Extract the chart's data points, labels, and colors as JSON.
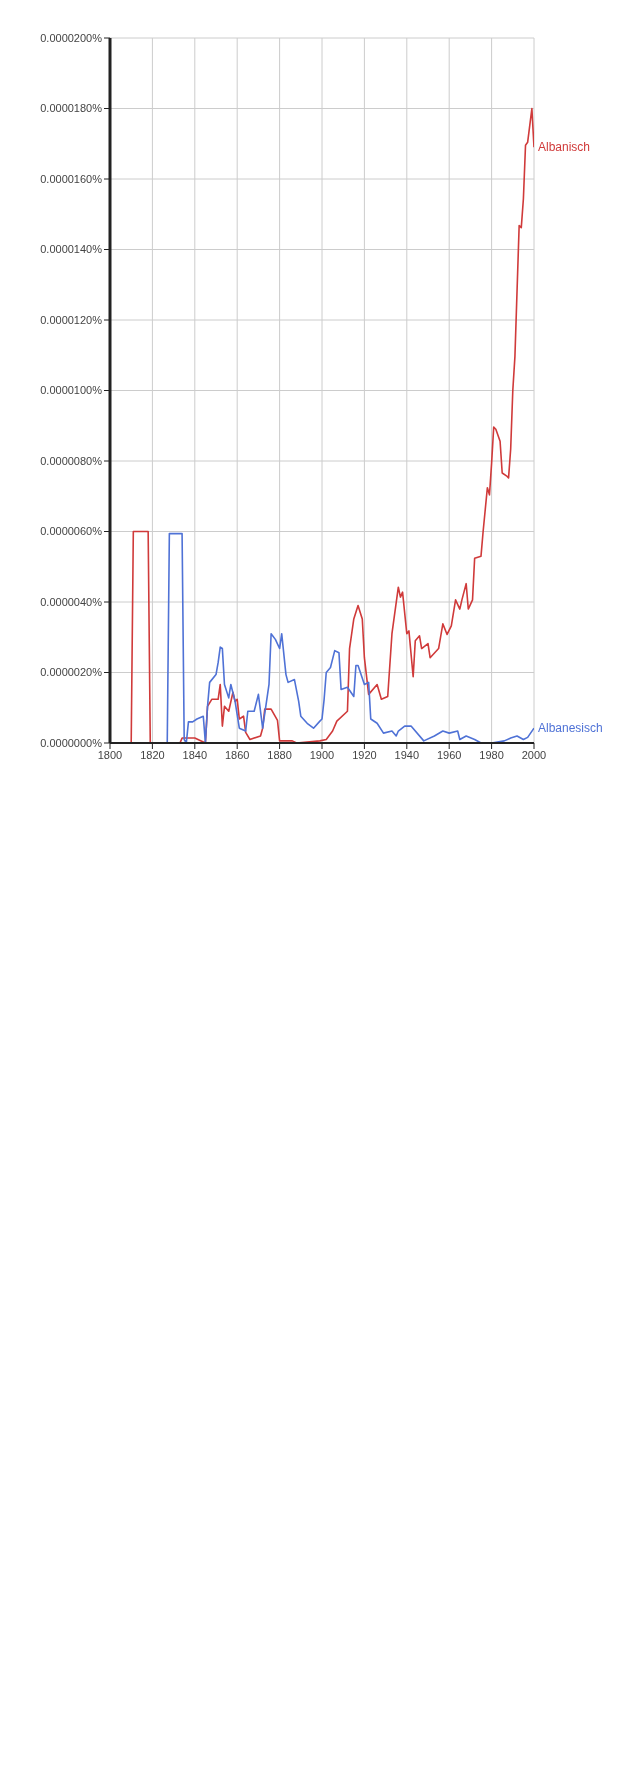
{
  "chart_data": {
    "type": "line",
    "xlim": [
      1800,
      2000
    ],
    "xticks": [
      1800,
      1820,
      1840,
      1860,
      1880,
      1900,
      1920,
      1940,
      1960,
      1980,
      2000
    ],
    "ylim": [
      0,
      2e-05
    ],
    "yticks": [
      {
        "value": 0,
        "label": "0.0000000%"
      },
      {
        "value": 2e-06,
        "label": "0.0000020%"
      },
      {
        "value": 4e-06,
        "label": "0.0000040%"
      },
      {
        "value": 6e-06,
        "label": "0.0000060%"
      },
      {
        "value": 8e-06,
        "label": "0.0000080%"
      },
      {
        "value": 1e-05,
        "label": "0.0000100%"
      },
      {
        "value": 1.2e-05,
        "label": "0.0000120%"
      },
      {
        "value": 1.4e-05,
        "label": "0.0000140%"
      },
      {
        "value": 1.6e-05,
        "label": "0.0000160%"
      },
      {
        "value": 1.8e-05,
        "label": "0.0000180%"
      },
      {
        "value": 2e-05,
        "label": "0.0000200%"
      }
    ],
    "grid": true,
    "legend": false,
    "marker": "none",
    "line_style": "solid",
    "series": [
      {
        "name": "Albanisch",
        "color": "#d03a3a",
        "x": [
          1800,
          1810,
          1811,
          1818,
          1819,
          1833,
          1834,
          1840,
          1845,
          1846,
          1848,
          1851,
          1852,
          1853,
          1854,
          1856,
          1858,
          1859,
          1860,
          1861,
          1863,
          1864,
          1866,
          1871,
          1872,
          1873,
          1876,
          1879,
          1880,
          1886,
          1888,
          1899,
          1902,
          1905,
          1907,
          1912,
          1913,
          1915,
          1917,
          1919,
          1920,
          1922,
          1926,
          1928,
          1931,
          1933,
          1936,
          1937,
          1938,
          1940,
          1941,
          1943,
          1944,
          1946,
          1947,
          1950,
          1951,
          1955,
          1957,
          1959,
          1961,
          1963,
          1965,
          1966,
          1968,
          1969,
          1971,
          1972,
          1975,
          1976,
          1978,
          1979,
          1980,
          1981,
          1982,
          1984,
          1985,
          1987,
          1988,
          1989,
          1990,
          1991,
          1993,
          1994,
          1995,
          1996,
          1997,
          1999,
          2000
        ],
        "values": [
          0,
          0,
          6e-06,
          6e-06,
          0,
          0,
          1.4e-07,
          1.4e-07,
          0,
          1.04e-06,
          1.24e-06,
          1.24e-06,
          1.66e-06,
          4.8e-07,
          1.04e-06,
          9e-07,
          1.44e-06,
          1.18e-06,
          1.24e-06,
          6.8e-07,
          7.6e-07,
          3e-07,
          1e-07,
          2e-07,
          4.2e-07,
          9.6e-07,
          9.6e-07,
          6.4e-07,
          6e-08,
          6e-08,
          0,
          6e-08,
          1e-07,
          3.4e-07,
          6.2e-07,
          9e-07,
          2.68e-06,
          3.52e-06,
          3.9e-06,
          3.52e-06,
          2.42e-06,
          1.38e-06,
          1.66e-06,
          1.24e-06,
          1.32e-06,
          3.1e-06,
          4.42e-06,
          4.14e-06,
          4.28e-06,
          3.1e-06,
          3.18e-06,
          1.88e-06,
          2.9e-06,
          3.04e-06,
          2.68e-06,
          2.82e-06,
          2.42e-06,
          2.68e-06,
          3.38e-06,
          3.08e-06,
          3.32e-06,
          4.06e-06,
          3.8e-06,
          4.06e-06,
          4.52e-06,
          3.8e-06,
          4.06e-06,
          5.24e-06,
          5.3e-06,
          6e-06,
          7.24e-06,
          7.04e-06,
          7.94e-06,
          8.96e-06,
          8.9e-06,
          8.56e-06,
          7.66e-06,
          7.58e-06,
          7.52e-06,
          8.34e-06,
          1e-05,
          1.096e-05,
          1.468e-05,
          1.462e-05,
          1.544e-05,
          1.696e-05,
          1.704e-05,
          1.8e-05,
          1.69e-05
        ]
      },
      {
        "name": "Albanesisch",
        "color": "#4f72d6",
        "x": [
          1800,
          1827,
          1828,
          1834,
          1835,
          1836,
          1837,
          1839,
          1841,
          1844,
          1845,
          1846,
          1847,
          1850,
          1851,
          1852,
          1853,
          1854,
          1856,
          1857,
          1859,
          1861,
          1864,
          1865,
          1868,
          1870,
          1872,
          1875,
          1876,
          1878,
          1880,
          1881,
          1883,
          1884,
          1887,
          1889,
          1890,
          1893,
          1896,
          1899,
          1900,
          1901,
          1902,
          1904,
          1906,
          1908,
          1909,
          1912,
          1915,
          1916,
          1917,
          1920,
          1922,
          1923,
          1926,
          1929,
          1933,
          1935,
          1936,
          1939,
          1942,
          1948,
          1953,
          1957,
          1960,
          1964,
          1965,
          1968,
          1972,
          1975,
          1980,
          1986,
          1989,
          1992,
          1995,
          1997,
          2000
        ],
        "values": [
          0,
          0,
          5.94e-06,
          5.94e-06,
          1e-07,
          0,
          6e-07,
          6e-07,
          6.8e-07,
          7.6e-07,
          0,
          1.04e-06,
          1.72e-06,
          1.94e-06,
          2.28e-06,
          2.72e-06,
          2.68e-06,
          1.66e-06,
          1.28e-06,
          1.66e-06,
          1.18e-06,
          4.2e-07,
          3.4e-07,
          9e-07,
          9e-07,
          1.38e-06,
          4.2e-07,
          1.66e-06,
          3.1e-06,
          2.94e-06,
          2.68e-06,
          3.1e-06,
          1.94e-06,
          1.72e-06,
          1.8e-06,
          1.18e-06,
          7.6e-07,
          5.6e-07,
          4.2e-07,
          6.2e-07,
          6.8e-07,
          1.24e-06,
          2e-06,
          2.14e-06,
          2.62e-06,
          2.56e-06,
          1.52e-06,
          1.58e-06,
          1.32e-06,
          2.2e-06,
          2.2e-06,
          1.66e-06,
          1.72e-06,
          6.8e-07,
          5.6e-07,
          2.8e-07,
          3.4e-07,
          2e-07,
          3.4e-07,
          4.8e-07,
          4.8e-07,
          6e-08,
          2e-07,
          3.4e-07,
          2.8e-07,
          3.4e-07,
          1e-07,
          2e-07,
          1e-07,
          0,
          0,
          6e-08,
          1.4e-07,
          2e-07,
          1e-07,
          1.6e-07,
          4.2e-07
        ]
      }
    ]
  }
}
